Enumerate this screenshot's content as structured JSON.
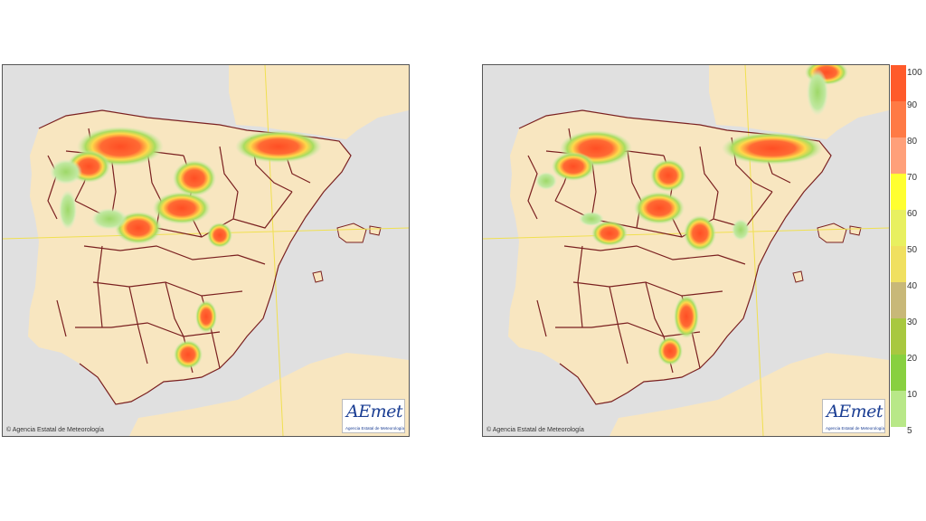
{
  "maps": [
    {
      "copyright": "© Agencia Estatal de Meteorología",
      "logo_text": "AEmet",
      "logo_sub": "Agencia Estatal de Meteorología"
    },
    {
      "copyright": "© Agencia Estatal de Meteorología",
      "logo_text": "AEmet",
      "logo_sub": "Agencia Estatal de Meteorología"
    }
  ],
  "legend": {
    "labels": [
      "100",
      "90",
      "80",
      "70",
      "60",
      "50",
      "40",
      "30",
      "20",
      "10",
      "5"
    ],
    "colors": [
      "#ff5a2a",
      "#ff7a45",
      "#ffa07a",
      "#ffff30",
      "#e8f060",
      "#f0e060",
      "#c8b878",
      "#a8c840",
      "#88d040",
      "#b8e888",
      "#c8ecc8"
    ]
  },
  "colors": {
    "land": "#f8e6c0",
    "sea": "#e0e0e0",
    "borders": "#7a2020",
    "graticule": "#f0e050"
  }
}
